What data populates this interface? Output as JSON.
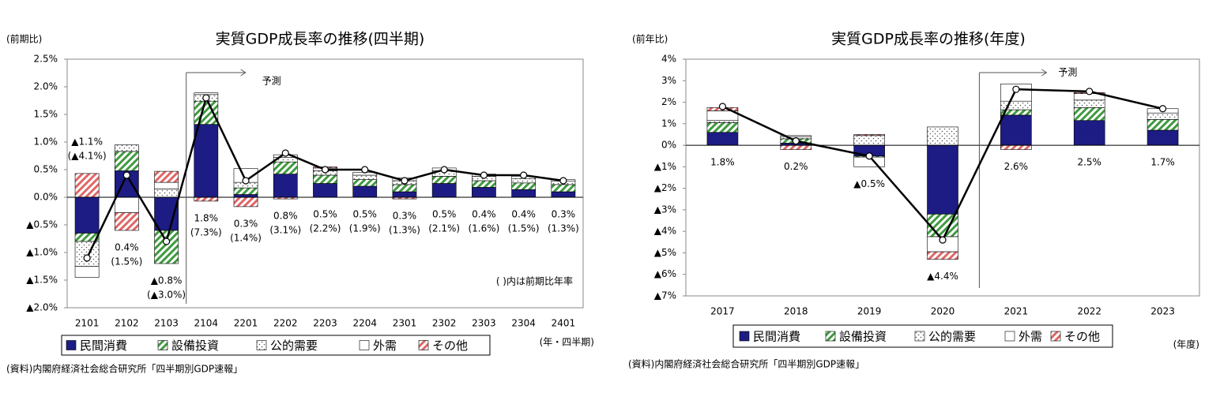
{
  "chart_data": [
    {
      "type": "bar",
      "stacked": true,
      "title": "実質GDP成長率の推移(四半期)",
      "ylabel": "(前期比)",
      "xunit": "(年・四半期)",
      "source": "(資料)内閣府経済社会総合研究所「四半期別GDP速報」",
      "note": "(  )内は前期比年率",
      "forecast_label": "予測",
      "categories": [
        "2101",
        "2102",
        "2103",
        "2104",
        "2201",
        "2202",
        "2203",
        "2204",
        "2301",
        "2302",
        "2303",
        "2304",
        "2401"
      ],
      "ylim": [
        -2.0,
        2.5
      ],
      "yticks": [
        {
          "value": -2.0,
          "label": "▲2.0%"
        },
        {
          "value": -1.5,
          "label": "▲1.5%"
        },
        {
          "value": -1.0,
          "label": "▲1.0%"
        },
        {
          "value": -0.5,
          "label": "▲0.5%"
        },
        {
          "value": 0,
          "label": "0.0%"
        },
        {
          "value": 0.5,
          "label": "0.5%"
        },
        {
          "value": 1.0,
          "label": "1.0%"
        },
        {
          "value": 1.5,
          "label": "1.5%"
        },
        {
          "value": 2.0,
          "label": "2.0%"
        },
        {
          "value": 2.5,
          "label": "2.5%"
        }
      ],
      "series": [
        {
          "name": "民間消費",
          "color": "#1c1c84",
          "fill": "solid",
          "values": [
            -0.65,
            0.48,
            -0.6,
            1.32,
            0.05,
            0.42,
            0.25,
            0.2,
            0.1,
            0.25,
            0.18,
            0.14,
            0.1
          ]
        },
        {
          "name": "設備投資",
          "color": "#3f9a3f",
          "fill": "hatch",
          "values": [
            -0.15,
            0.35,
            -0.6,
            0.42,
            0.12,
            0.22,
            0.15,
            0.12,
            0.13,
            0.13,
            0.12,
            0.12,
            0.13
          ]
        },
        {
          "name": "公的需要",
          "color": "#555555",
          "fill": "dots",
          "values": [
            -0.45,
            0.12,
            0.15,
            0.12,
            0.1,
            0.08,
            0.08,
            0.08,
            0.07,
            0.1,
            0.08,
            0.08,
            0.06
          ]
        },
        {
          "name": "外需",
          "color": "#ffffff",
          "fill": "none",
          "values": [
            -0.2,
            -0.28,
            0.12,
            0.03,
            0.25,
            0.05,
            0.05,
            0.05,
            0.05,
            0.05,
            0.04,
            0.04,
            0.03
          ]
        },
        {
          "name": "その他",
          "color": "#e06666",
          "fill": "hatch",
          "values": [
            0.43,
            -0.32,
            0.2,
            -0.07,
            -0.17,
            -0.03,
            0.02,
            0,
            -0.03,
            0,
            0,
            0,
            0
          ]
        }
      ],
      "line": {
        "color": "#000000",
        "values": [
          -1.1,
          0.4,
          -0.8,
          1.8,
          0.3,
          0.8,
          0.5,
          0.5,
          0.3,
          0.5,
          0.4,
          0.4,
          0.3
        ],
        "value_labels": [
          "▲1.1%",
          "0.4%",
          "▲0.8%",
          "1.8%",
          "0.3%",
          "0.8%",
          "0.5%",
          "0.5%",
          "0.3%",
          "0.5%",
          "0.4%",
          "0.4%",
          "0.3%"
        ],
        "annualized_labels": [
          "(▲4.1%)",
          "(1.5%)",
          "(▲3.0%)",
          "(7.3%)",
          "(1.4%)",
          "(3.1%)",
          "(2.2%)",
          "(1.9%)",
          "(1.3%)",
          "(2.1%)",
          "(1.6%)",
          "(1.5%)",
          "(1.3%)"
        ]
      }
    },
    {
      "type": "bar",
      "stacked": true,
      "title": "実質GDP成長率の推移(年度)",
      "ylabel": "(前年比)",
      "xunit": "(年度)",
      "source": "(資料)内閣府経済社会総合研究所「四半期別GDP速報」",
      "forecast_label": "予測",
      "categories": [
        "2017",
        "2018",
        "2019",
        "2020",
        "2021",
        "2022",
        "2023"
      ],
      "ylim": [
        -7,
        4
      ],
      "yticks": [
        {
          "value": -7,
          "label": "▲7%"
        },
        {
          "value": -6,
          "label": "▲6%"
        },
        {
          "value": -5,
          "label": "▲5%"
        },
        {
          "value": -4,
          "label": "▲4%"
        },
        {
          "value": -3,
          "label": "▲3%"
        },
        {
          "value": -2,
          "label": "▲2%"
        },
        {
          "value": -1,
          "label": "▲1%"
        },
        {
          "value": 0,
          "label": "0%"
        },
        {
          "value": 1,
          "label": "1%"
        },
        {
          "value": 2,
          "label": "2%"
        },
        {
          "value": 3,
          "label": "3%"
        },
        {
          "value": 4,
          "label": "4%"
        }
      ],
      "series": [
        {
          "name": "民間消費",
          "color": "#1c1c84",
          "fill": "solid",
          "values": [
            0.6,
            0.1,
            -0.5,
            -3.2,
            1.4,
            1.15,
            0.7
          ]
        },
        {
          "name": "設備投資",
          "color": "#3f9a3f",
          "fill": "hatch",
          "values": [
            0.45,
            0.2,
            -0.05,
            -1.05,
            0.25,
            0.6,
            0.5
          ]
        },
        {
          "name": "公的需要",
          "color": "#555555",
          "fill": "dots",
          "values": [
            0.1,
            0.1,
            0.45,
            0.85,
            0.4,
            0.35,
            0.3
          ]
        },
        {
          "name": "外需",
          "color": "#ffffff",
          "fill": "none",
          "values": [
            0.45,
            0.05,
            -0.45,
            -0.7,
            0.8,
            0.3,
            0.2
          ]
        },
        {
          "name": "その他",
          "color": "#e06666",
          "fill": "hatch",
          "values": [
            0.15,
            -0.2,
            0.05,
            -0.35,
            -0.2,
            0.05,
            0
          ]
        }
      ],
      "line": {
        "color": "#000000",
        "values": [
          1.8,
          0.2,
          -0.5,
          -4.4,
          2.6,
          2.5,
          1.7
        ],
        "value_labels": [
          "1.8%",
          "0.2%",
          "▲0.5%",
          "▲4.4%",
          "2.6%",
          "2.5%",
          "1.7%"
        ]
      }
    }
  ]
}
